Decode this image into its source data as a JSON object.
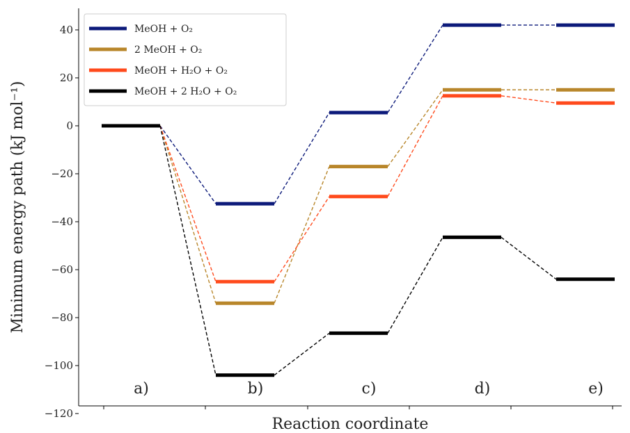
{
  "chart_data": {
    "type": "line",
    "xlabel": "Reaction coordinate",
    "ylabel": "Minimum energy path (kJ mol⁻¹)",
    "ylim": [
      -120,
      45
    ],
    "yticks": [
      -120,
      -100,
      -80,
      -60,
      -40,
      -20,
      0,
      20,
      40
    ],
    "ytick_labels": [
      "−120",
      "−100",
      "−80",
      "−60",
      "−40",
      "−20",
      "0",
      "20",
      "40"
    ],
    "categories": [
      "a)",
      "b)",
      "c)",
      "d)",
      "e)"
    ],
    "legend_position": "top-left",
    "grid": false,
    "series": [
      {
        "name": "MeOH + O₂",
        "color": "#0c1a7a",
        "values": [
          0,
          -32.5,
          5.5,
          42,
          42
        ]
      },
      {
        "name": "2 MeOH + O₂",
        "color": "#b8862a",
        "values": [
          0,
          -74,
          -17,
          15,
          15
        ]
      },
      {
        "name": "MeOH + H₂O + O₂",
        "color": "#ff4a1c",
        "values": [
          0,
          -65,
          -29.5,
          12.5,
          9.5
        ]
      },
      {
        "name": "MeOH + 2 H₂O + O₂",
        "color": "#000000",
        "values": [
          0,
          -104,
          -86.5,
          -46.5,
          -64
        ]
      }
    ]
  }
}
